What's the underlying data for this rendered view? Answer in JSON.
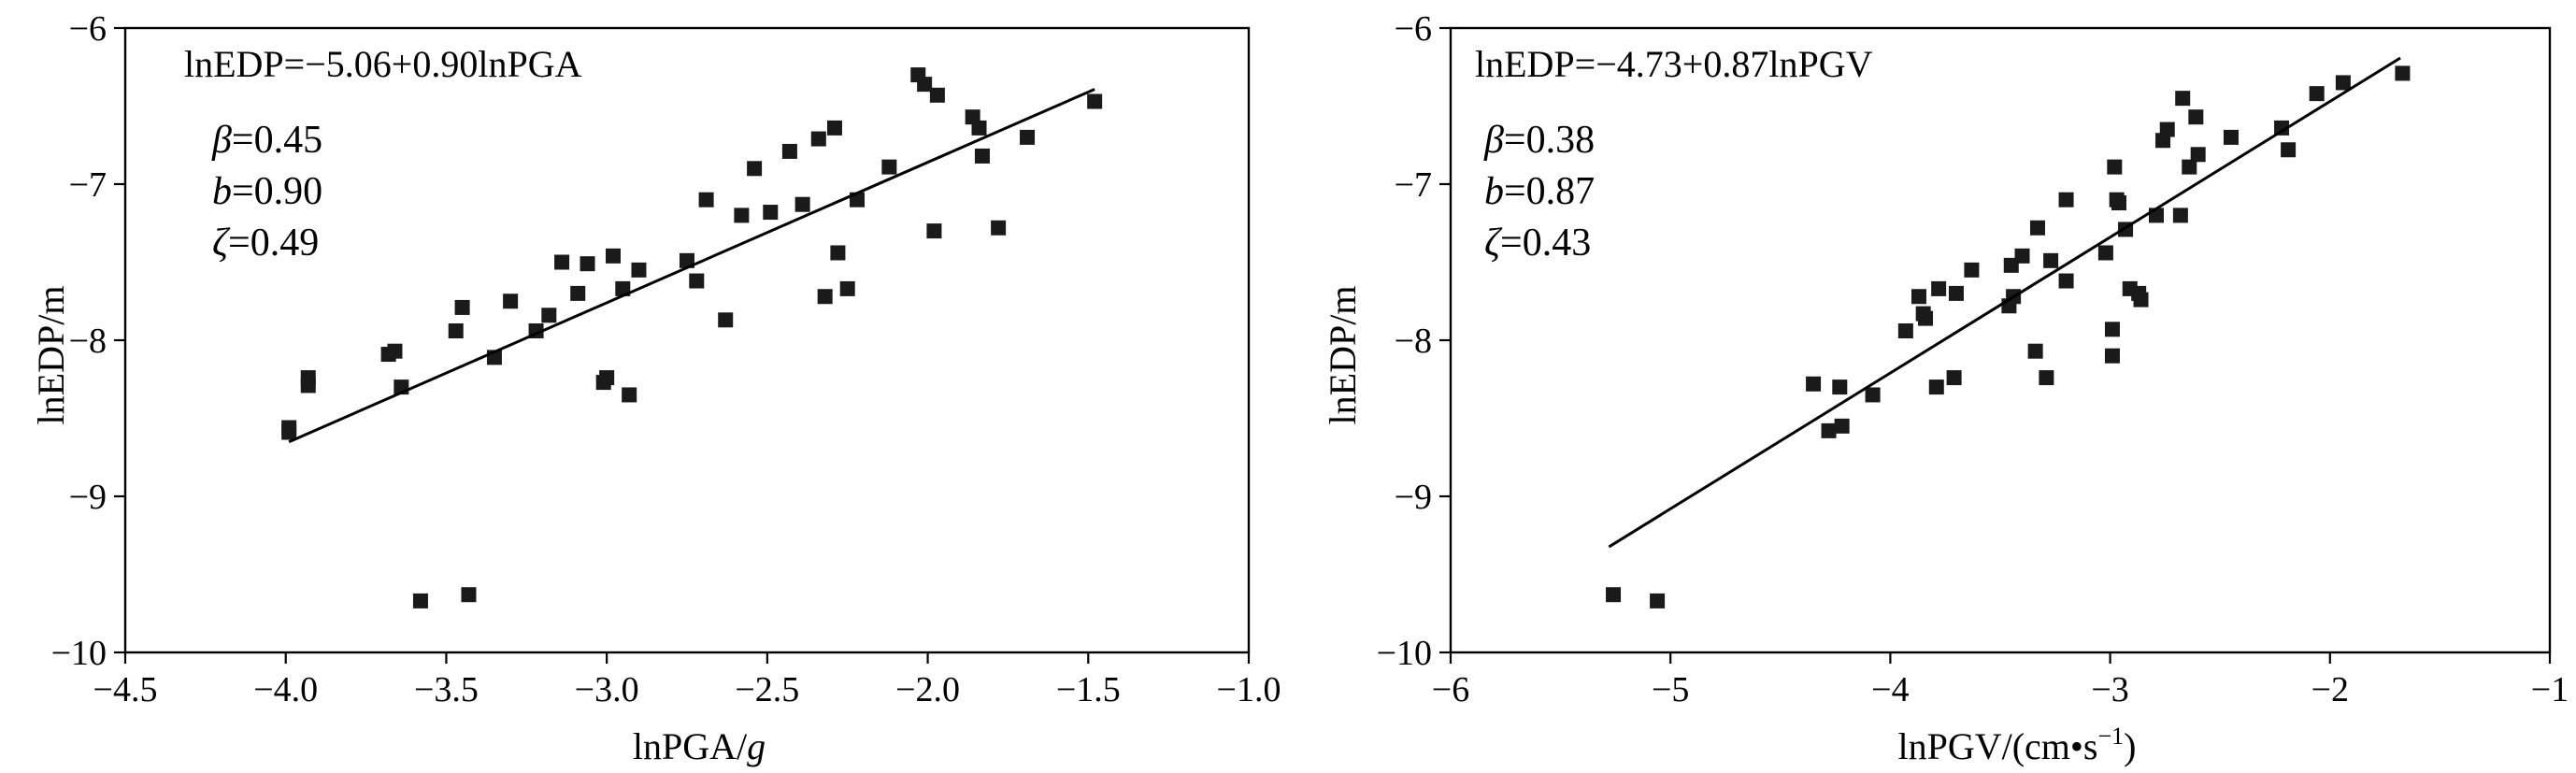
{
  "chart_data": [
    {
      "type": "scatter",
      "equation": "lnEDP=−5.06+0.90lnPGA",
      "params": [
        {
          "symbol": "β",
          "value": "=0.45"
        },
        {
          "symbol": "b",
          "value": "=0.90"
        },
        {
          "symbol": "ζ",
          "value": "=0.49"
        }
      ],
      "xlabel_main": "lnPGA/",
      "xlabel_unit": "g",
      "ylabel": "lnEDP/m",
      "xlim": [
        -4.5,
        -1.0
      ],
      "ylim": [
        -10,
        -6
      ],
      "xticks": [
        -4.5,
        -4.0,
        -3.5,
        -3.0,
        -2.5,
        -2.0,
        -1.5,
        -1.0
      ],
      "xtick_labels": [
        "−4.5",
        "−4.0",
        "−3.5",
        "−3.0",
        "−2.5",
        "−2.0",
        "−1.5",
        "−1.0"
      ],
      "yticks": [
        -10,
        -9,
        -8,
        -7,
        -6
      ],
      "ytick_labels": [
        "−10",
        "−9",
        "−8",
        "−7",
        "−6"
      ],
      "fit": {
        "intercept": -5.06,
        "slope": 0.9,
        "x_range": [
          -3.99,
          -1.48
        ]
      },
      "x": [
        -3.99,
        -3.99,
        -3.93,
        -3.93,
        -3.68,
        -3.66,
        -3.64,
        -3.58,
        -3.47,
        -3.45,
        -3.43,
        -3.35,
        -3.3,
        -3.22,
        -3.18,
        -3.14,
        -3.09,
        -3.06,
        -3.01,
        -3.0,
        -2.98,
        -2.95,
        -2.93,
        -2.9,
        -2.75,
        -2.72,
        -2.69,
        -2.63,
        -2.58,
        -2.54,
        -2.49,
        -2.43,
        -2.39,
        -2.34,
        -2.32,
        -2.29,
        -2.28,
        -2.25,
        -2.22,
        -2.12,
        -2.03,
        -2.01,
        -1.98,
        -1.97,
        -1.86,
        -1.84,
        -1.83,
        -1.78,
        -1.69,
        -1.48
      ],
      "y": [
        -8.56,
        -8.59,
        -8.24,
        -8.29,
        -8.09,
        -8.07,
        -8.3,
        -9.67,
        -7.94,
        -7.79,
        -9.63,
        -8.11,
        -7.75,
        -7.94,
        -7.84,
        -7.5,
        -7.7,
        -7.51,
        -8.27,
        -8.24,
        -7.46,
        -7.67,
        -8.35,
        -7.55,
        -7.49,
        -7.62,
        -7.1,
        -7.87,
        -7.2,
        -6.9,
        -7.18,
        -6.79,
        -7.13,
        -6.71,
        -7.72,
        -6.64,
        -7.44,
        -7.67,
        -7.1,
        -6.89,
        -6.3,
        -6.36,
        -7.3,
        -6.43,
        -6.57,
        -6.64,
        -6.82,
        -7.28,
        -6.7,
        -6.47
      ]
    },
    {
      "type": "scatter",
      "equation": "lnEDP=−4.73+0.87lnPGV",
      "params": [
        {
          "symbol": "β",
          "value": "=0.38"
        },
        {
          "symbol": "b",
          "value": "=0.87"
        },
        {
          "symbol": "ζ",
          "value": "=0.43"
        }
      ],
      "xlabel_main": "lnPGV/(cm•s",
      "xlabel_sup": "−1",
      "xlabel_close": ")",
      "ylabel": "lnEDP/m",
      "xlim": [
        -6,
        -1
      ],
      "ylim": [
        -10,
        -6
      ],
      "xticks": [
        -6,
        -5,
        -4,
        -3,
        -2,
        -1
      ],
      "xtick_labels": [
        "−6",
        "−5",
        "−4",
        "−3",
        "−2",
        "−1"
      ],
      "yticks": [
        -10,
        -9,
        -8,
        -7,
        -6
      ],
      "ytick_labels": [
        "−10",
        "−9",
        "−8",
        "−7",
        "−6"
      ],
      "fit": {
        "intercept": -4.73,
        "slope": 0.87,
        "x_range": [
          -5.28,
          -1.68
        ]
      },
      "x": [
        -5.26,
        -5.06,
        -4.35,
        -4.28,
        -4.23,
        -4.22,
        -4.08,
        -3.93,
        -3.87,
        -3.85,
        -3.84,
        -3.79,
        -3.78,
        -3.71,
        -3.7,
        -3.63,
        -3.46,
        -3.45,
        -3.44,
        -3.4,
        -3.34,
        -3.33,
        -3.29,
        -3.27,
        -3.2,
        -3.2,
        -3.02,
        -2.99,
        -2.99,
        -2.98,
        -2.97,
        -2.96,
        -2.93,
        -2.91,
        -2.87,
        -2.86,
        -2.79,
        -2.76,
        -2.74,
        -2.68,
        -2.67,
        -2.64,
        -2.61,
        -2.6,
        -2.45,
        -2.22,
        -2.19,
        -2.06,
        -1.94,
        -1.67
      ],
      "y": [
        -9.63,
        -9.67,
        -8.28,
        -8.58,
        -8.3,
        -8.55,
        -8.35,
        -7.94,
        -7.72,
        -7.83,
        -7.86,
        -8.3,
        -7.67,
        -8.24,
        -7.7,
        -7.55,
        -7.78,
        -7.52,
        -7.72,
        -7.46,
        -8.07,
        -7.28,
        -8.24,
        -7.49,
        -7.1,
        -7.62,
        -7.44,
        -7.93,
        -8.1,
        -6.89,
        -7.1,
        -7.12,
        -7.29,
        -7.67,
        -7.7,
        -7.74,
        -7.2,
        -6.72,
        -6.65,
        -7.2,
        -6.45,
        -6.89,
        -6.57,
        -6.81,
        -6.7,
        -6.64,
        -6.78,
        -6.42,
        -6.35,
        -6.29
      ]
    }
  ]
}
